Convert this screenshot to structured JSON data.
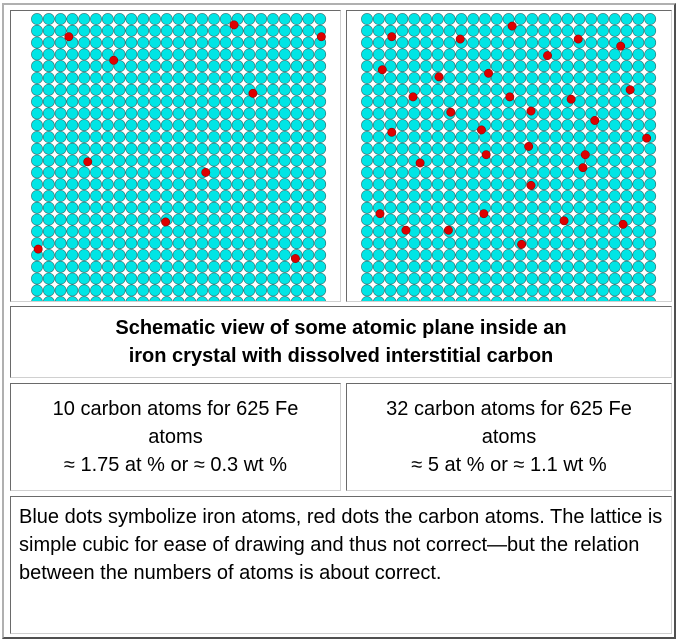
{
  "panels": [
    {
      "name": "10 carbon",
      "grid_size": 25,
      "fe_color": "#00e5e5",
      "c_color": "#dd0000",
      "carbon": [
        [
          1.1,
          1
        ],
        [
          8.1,
          0
        ],
        [
          11.8,
          1
        ],
        [
          3,
          3
        ],
        [
          8.9,
          5.8
        ],
        [
          1.9,
          11.6
        ],
        [
          6.9,
          12.5
        ],
        [
          5.2,
          16.7
        ],
        [
          -0.2,
          19
        ],
        [
          10.7,
          19.8
        ]
      ]
    },
    {
      "name": "32 carbon",
      "grid_size": 25,
      "fe_color": "#00e5e5",
      "c_color": "#dd0000",
      "carbon": [
        [
          0.8,
          1
        ],
        [
          3.7,
          1.2
        ],
        [
          5.9,
          0.1
        ],
        [
          8.7,
          1.2
        ],
        [
          10.5,
          1.8
        ],
        [
          7.4,
          2.6
        ],
        [
          0.4,
          3.8
        ],
        [
          2.8,
          4.4
        ],
        [
          4.9,
          4.1
        ],
        [
          10.9,
          5.5
        ],
        [
          1.7,
          6.1
        ],
        [
          5.8,
          6.1
        ],
        [
          8.4,
          6.3
        ],
        [
          3.3,
          7.4
        ],
        [
          6.7,
          7.3
        ],
        [
          9.4,
          8.1
        ],
        [
          0.8,
          9.1
        ],
        [
          4.6,
          8.9
        ],
        [
          11.6,
          9.6
        ],
        [
          6.6,
          10.3
        ],
        [
          9,
          11
        ],
        [
          2,
          11.7
        ],
        [
          4.8,
          11
        ],
        [
          8.9,
          12.1
        ],
        [
          6.7,
          13.6
        ],
        [
          0.3,
          16
        ],
        [
          4.7,
          16
        ],
        [
          1.4,
          17.4
        ],
        [
          3.2,
          17.4
        ],
        [
          8.1,
          16.6
        ],
        [
          10.6,
          16.9
        ],
        [
          6.3,
          18.6
        ]
      ]
    }
  ],
  "caption": {
    "line1": "Schematic view of some atomic plane inside an",
    "line2": "iron crystal with dissolved interstitial carbon"
  },
  "counts": [
    {
      "line1": "10 carbon atoms for 625 Fe",
      "line2": "atoms",
      "line3": "≈ 1.75 at % or ≈ 0.3 wt %"
    },
    {
      "line1": "32 carbon atoms for 625 Fe",
      "line2": "atoms",
      "line3": "≈ 5 at % or ≈ 1.1 wt %"
    }
  ],
  "note": "Blue dots symbolize iron atoms, red dots the carbon atoms. The lattice is simple cubic for ease of drawing and thus not correct—but the relation between the numbers of atoms is about correct."
}
